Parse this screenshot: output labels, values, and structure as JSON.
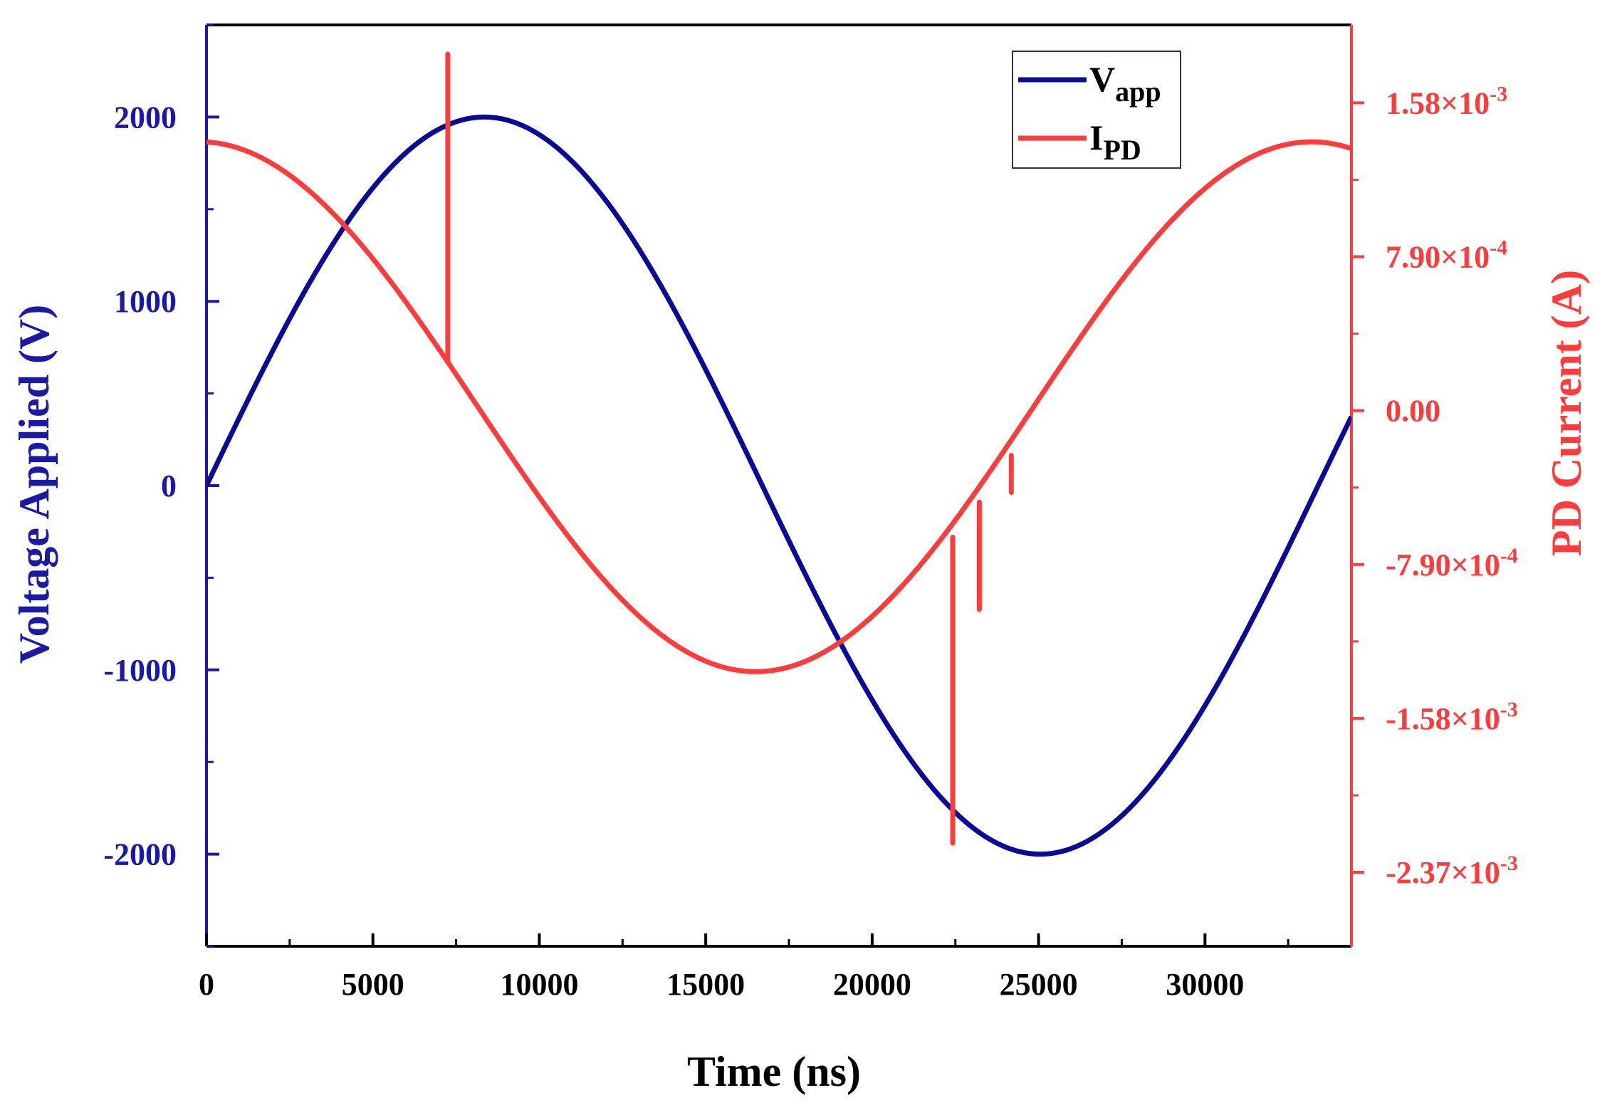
{
  "chart_data": {
    "type": "line",
    "title": "",
    "xlabel": "Time (ns)",
    "ylabel_left": "Voltage Applied (V)",
    "ylabel_right": "PD Current (A)",
    "xlim": [
      0,
      34400
    ],
    "ylim_left": [
      -2500,
      2500
    ],
    "ylim_right": [
      -0.00275,
      0.00198
    ],
    "x_ticks": [
      "0",
      "5000",
      "10000",
      "15000",
      "20000",
      "25000",
      "30000"
    ],
    "x_tick_values": [
      0,
      5000,
      10000,
      15000,
      20000,
      25000,
      30000
    ],
    "y_left_ticks": [
      "2000",
      "1000",
      "0",
      "-1000",
      "-2000"
    ],
    "y_left_tick_values": [
      2000,
      1000,
      0,
      -1000,
      -2000
    ],
    "y_right_ticks": [
      {
        "mantissa": "1.58",
        "exponent": "-3",
        "value": 0.00158
      },
      {
        "mantissa": "7.90",
        "exponent": "-4",
        "value": 0.00079
      },
      {
        "mantissa": "0.00",
        "exponent": "",
        "value": 0
      },
      {
        "mantissa": "-7.90",
        "exponent": "-4",
        "value": -0.00079
      },
      {
        "mantissa": "-1.58",
        "exponent": "-3",
        "value": -0.00158
      },
      {
        "mantissa": "-2.37",
        "exponent": "-3",
        "value": -0.00237
      }
    ],
    "series": [
      {
        "name": "V_app",
        "label_main": "V",
        "label_sub": "app",
        "axis": "left",
        "color": "#0a0a96",
        "model": "sine",
        "amplitude": 2000,
        "period_ns": 33400,
        "phase_ns": 0,
        "x_end": 34400
      },
      {
        "name": "I_PD",
        "label_main": "I",
        "label_sub": "PD",
        "axis": "right",
        "color": "#ff3b3b",
        "model": "cosine",
        "amplitude": 0.00136,
        "period_ns": 33400,
        "peak_ns": 33200,
        "offset": 2e-05,
        "x_end": 34400,
        "spikes": [
          {
            "x": 7250,
            "from": 0.00025,
            "to": 0.00183
          },
          {
            "x": 22420,
            "from": -0.00065,
            "to": -0.00222
          },
          {
            "x": 23220,
            "from": -0.00047,
            "to": -0.00102
          },
          {
            "x": 24180,
            "from": -0.00023,
            "to": -0.00042
          }
        ]
      }
    ],
    "legend_position": "top-right",
    "left_axis_color": "#1a1aa6",
    "right_axis_color": "#ff3b3b",
    "axis_color": "#000000"
  }
}
